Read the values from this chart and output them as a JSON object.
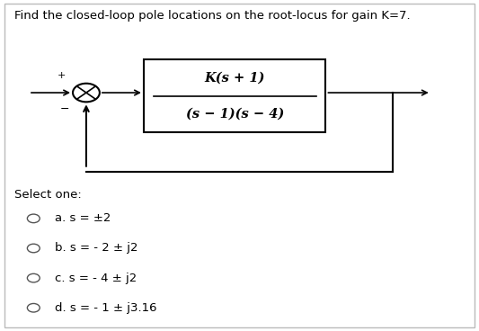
{
  "title": "Find the closed-loop pole locations on the root-locus for gain K=7.",
  "transfer_func_num": "K(s + 1)",
  "transfer_func_den": "(s − 1)(s − 4)",
  "select_label": "Select one:",
  "options": [
    "a. s = ±2",
    "b. s = - 2 ± j2",
    "c. s = - 4 ± j2",
    "d. s = - 1 ± j3.16"
  ],
  "bg_color": "#ffffff",
  "border_color": "#cccccc",
  "text_color": "#000000",
  "title_fontsize": 9.5,
  "option_fontsize": 9.5,
  "select_fontsize": 9.5,
  "tf_fontsize": 10.5
}
